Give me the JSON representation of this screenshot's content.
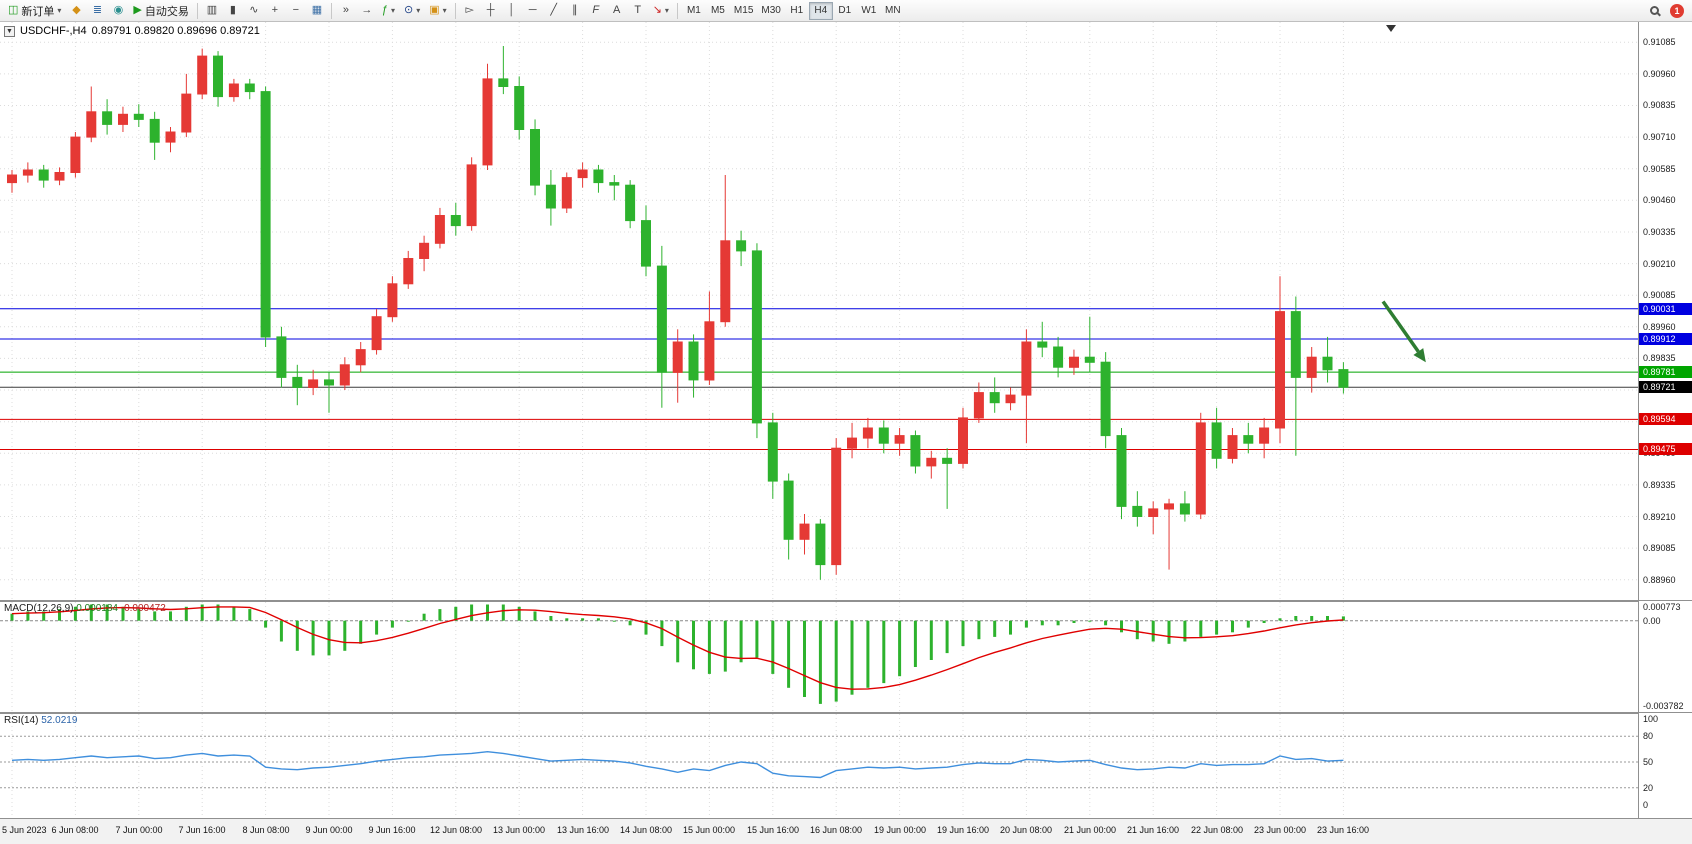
{
  "toolbar": {
    "new_order_label": "新订单",
    "autotrade_label": "自动交易",
    "timeframes": [
      "M1",
      "M5",
      "M15",
      "M30",
      "H1",
      "H4",
      "D1",
      "W1",
      "MN"
    ],
    "active_timeframe": "H4",
    "notification_badge": "1"
  },
  "icons": {
    "new_order": "◫",
    "terminal": "◆",
    "market_watch": "≣",
    "community": "◉",
    "autotrade_play": "▶",
    "bar_chart": "▥",
    "candlestick": "▮",
    "line_chart": "∿",
    "zoom_in": "+",
    "zoom_out": "−",
    "tile_windows": "▦",
    "auto_scroll": "»",
    "chart_shift": "→",
    "indicators": "ƒ",
    "periods": "⊙",
    "templates": "▣",
    "cursor": "▻",
    "crosshair": "┼",
    "vline": "│",
    "hline": "─",
    "trendline": "╱",
    "channel": "∥",
    "fibonacci": "F",
    "text": "A",
    "text_label": "T",
    "arrows": "↘",
    "dropdown": "▾",
    "collapse": "▼"
  },
  "chart_header": {
    "title": "USDCHF-,H4",
    "ohlc": "0.89791 0.89820 0.89696 0.89721"
  },
  "indicators": {
    "macd": {
      "label": "MACD(12,26,9)",
      "value_main": "0.000184",
      "value_signal": "-0.000472",
      "scale_top": "0.000773",
      "scale_zero": "0.00",
      "scale_bottom": "-0.003782"
    },
    "rsi": {
      "label": "RSI(14)",
      "value": "52.0219",
      "scale": [
        "100",
        "80",
        "50",
        "20",
        "0"
      ]
    }
  },
  "price_scale": {
    "labels": [
      "0.91085",
      "0.90960",
      "0.90835",
      "0.90710",
      "0.90585",
      "0.90460",
      "0.90335",
      "0.90210",
      "0.90085",
      "0.89960",
      "0.89835",
      "0.89710",
      "0.89585",
      "0.89460",
      "0.89335",
      "0.89210",
      "0.89085",
      "0.88960"
    ]
  },
  "price_lines": [
    {
      "price": 0.90031,
      "label": "0.90031",
      "color": "#0000e0",
      "name": "resistance-line-1"
    },
    {
      "price": 0.89912,
      "label": "0.89912",
      "color": "#0000e0",
      "name": "resistance-line-2"
    },
    {
      "price": 0.89781,
      "label": "0.89781",
      "color": "#00a500",
      "name": "pivot-line"
    },
    {
      "price": 0.89721,
      "label": "0.89721",
      "color": "#3c3c3c",
      "name": "current-price-line",
      "current": true
    },
    {
      "price": 0.89594,
      "label": "0.89594",
      "color": "#dd0000",
      "name": "support-line-1"
    },
    {
      "price": 0.89475,
      "label": "0.89475",
      "color": "#dd0000",
      "name": "support-line-2"
    }
  ],
  "time_axis": [
    "5 Jun 2023",
    "6 Jun 08:00",
    "7 Jun 00:00",
    "7 Jun 16:00",
    "8 Jun 08:00",
    "9 Jun 00:00",
    "9 Jun 16:00",
    "12 Jun 08:00",
    "13 Jun 00:00",
    "13 Jun 16:00",
    "14 Jun 08:00",
    "15 Jun 00:00",
    "15 Jun 16:00",
    "16 Jun 08:00",
    "19 Jun 00:00",
    "19 Jun 16:00",
    "20 Jun 08:00",
    "21 Jun 00:00",
    "21 Jun 16:00",
    "22 Jun 08:00",
    "23 Jun 00:00",
    "23 Jun 16:00"
  ],
  "annotations": {
    "arrow": {
      "from_idx": 86.5,
      "from_price": 0.9006,
      "to_idx": 89.2,
      "to_price": 0.8982,
      "color": "#2e7d32"
    }
  },
  "chart_data": {
    "type": "candlestick",
    "symbol": "USDCHF-",
    "timeframe": "H4",
    "price_range": [
      0.8888,
      0.91165
    ],
    "colors": {
      "up": "#e53935",
      "down": "#2db22d",
      "macd_hist": "#2db22d",
      "macd_signal": "#e00000",
      "rsi_line": "#3f8fdd",
      "grid": "#dcdcdc"
    },
    "candles": [
      [
        0.9053,
        0.9058,
        0.9049,
        0.9056
      ],
      [
        0.9056,
        0.9061,
        0.9053,
        0.9058
      ],
      [
        0.9058,
        0.906,
        0.9051,
        0.9054
      ],
      [
        0.9054,
        0.9059,
        0.9052,
        0.9057
      ],
      [
        0.9057,
        0.9073,
        0.9055,
        0.9071
      ],
      [
        0.9071,
        0.9091,
        0.9069,
        0.9081
      ],
      [
        0.9081,
        0.9086,
        0.9072,
        0.9076
      ],
      [
        0.9076,
        0.9083,
        0.9073,
        0.908
      ],
      [
        0.908,
        0.9084,
        0.9075,
        0.9078
      ],
      [
        0.9078,
        0.9081,
        0.9062,
        0.9069
      ],
      [
        0.9069,
        0.9075,
        0.9065,
        0.9073
      ],
      [
        0.9073,
        0.9096,
        0.9071,
        0.9088
      ],
      [
        0.9088,
        0.9106,
        0.9086,
        0.9103
      ],
      [
        0.9103,
        0.9105,
        0.9083,
        0.9087
      ],
      [
        0.9087,
        0.9094,
        0.9085,
        0.9092
      ],
      [
        0.9092,
        0.9094,
        0.9086,
        0.9089
      ],
      [
        0.9089,
        0.9091,
        0.8988,
        0.8992
      ],
      [
        0.8992,
        0.8996,
        0.8972,
        0.8976
      ],
      [
        0.8976,
        0.8981,
        0.8965,
        0.8972
      ],
      [
        0.8972,
        0.8979,
        0.8969,
        0.8975
      ],
      [
        0.8975,
        0.8978,
        0.8962,
        0.8973
      ],
      [
        0.8973,
        0.8984,
        0.8971,
        0.8981
      ],
      [
        0.8981,
        0.899,
        0.8978,
        0.8987
      ],
      [
        0.8987,
        0.9003,
        0.8985,
        0.9
      ],
      [
        0.9,
        0.9016,
        0.8998,
        0.9013
      ],
      [
        0.9013,
        0.9026,
        0.9011,
        0.9023
      ],
      [
        0.9023,
        0.9032,
        0.9018,
        0.9029
      ],
      [
        0.9029,
        0.9043,
        0.9027,
        0.904
      ],
      [
        0.904,
        0.9045,
        0.9032,
        0.9036
      ],
      [
        0.9036,
        0.9063,
        0.9034,
        0.906
      ],
      [
        0.906,
        0.91,
        0.9058,
        0.9094
      ],
      [
        0.9094,
        0.9107,
        0.9088,
        0.9091
      ],
      [
        0.9091,
        0.9095,
        0.907,
        0.9074
      ],
      [
        0.9074,
        0.9078,
        0.9048,
        0.9052
      ],
      [
        0.9052,
        0.9058,
        0.9036,
        0.9043
      ],
      [
        0.9043,
        0.9057,
        0.9041,
        0.9055
      ],
      [
        0.9055,
        0.9061,
        0.9051,
        0.9058
      ],
      [
        0.9058,
        0.906,
        0.9049,
        0.9053
      ],
      [
        0.9053,
        0.9056,
        0.9046,
        0.9052
      ],
      [
        0.9052,
        0.9054,
        0.9035,
        0.9038
      ],
      [
        0.9038,
        0.9044,
        0.9016,
        0.902
      ],
      [
        0.902,
        0.9028,
        0.8964,
        0.8978
      ],
      [
        0.8978,
        0.8995,
        0.8966,
        0.899
      ],
      [
        0.899,
        0.8993,
        0.8968,
        0.8975
      ],
      [
        0.8975,
        0.901,
        0.8973,
        0.8998
      ],
      [
        0.8998,
        0.9056,
        0.8996,
        0.903
      ],
      [
        0.903,
        0.9034,
        0.902,
        0.9026
      ],
      [
        0.9026,
        0.9029,
        0.8952,
        0.8958
      ],
      [
        0.8958,
        0.8962,
        0.8928,
        0.8935
      ],
      [
        0.8935,
        0.8938,
        0.8904,
        0.8912
      ],
      [
        0.8912,
        0.8922,
        0.8906,
        0.8918
      ],
      [
        0.8918,
        0.892,
        0.8896,
        0.8902
      ],
      [
        0.8902,
        0.8952,
        0.8898,
        0.8948
      ],
      [
        0.8948,
        0.8958,
        0.8944,
        0.8952
      ],
      [
        0.8952,
        0.896,
        0.8948,
        0.8956
      ],
      [
        0.8956,
        0.8959,
        0.8946,
        0.895
      ],
      [
        0.895,
        0.8956,
        0.8945,
        0.8953
      ],
      [
        0.8953,
        0.8955,
        0.8938,
        0.8941
      ],
      [
        0.8941,
        0.8947,
        0.8936,
        0.8944
      ],
      [
        0.8944,
        0.8948,
        0.8924,
        0.8942
      ],
      [
        0.8942,
        0.8964,
        0.894,
        0.896
      ],
      [
        0.896,
        0.8974,
        0.8958,
        0.897
      ],
      [
        0.897,
        0.8976,
        0.8962,
        0.8966
      ],
      [
        0.8966,
        0.8972,
        0.8963,
        0.8969
      ],
      [
        0.8969,
        0.8995,
        0.895,
        0.899
      ],
      [
        0.899,
        0.8998,
        0.8984,
        0.8988
      ],
      [
        0.8988,
        0.8992,
        0.8976,
        0.898
      ],
      [
        0.898,
        0.8987,
        0.8977,
        0.8984
      ],
      [
        0.8984,
        0.9,
        0.8978,
        0.8982
      ],
      [
        0.8982,
        0.8986,
        0.8948,
        0.8953
      ],
      [
        0.8953,
        0.8956,
        0.892,
        0.8925
      ],
      [
        0.8925,
        0.8931,
        0.8917,
        0.8921
      ],
      [
        0.8921,
        0.8927,
        0.8914,
        0.8924
      ],
      [
        0.8924,
        0.8928,
        0.89,
        0.8926
      ],
      [
        0.8926,
        0.8931,
        0.8919,
        0.8922
      ],
      [
        0.8922,
        0.8962,
        0.892,
        0.8958
      ],
      [
        0.8958,
        0.8964,
        0.894,
        0.8944
      ],
      [
        0.8944,
        0.8956,
        0.8942,
        0.8953
      ],
      [
        0.8953,
        0.8958,
        0.8946,
        0.895
      ],
      [
        0.895,
        0.896,
        0.8944,
        0.8956
      ],
      [
        0.8956,
        0.9016,
        0.895,
        0.9002
      ],
      [
        0.9002,
        0.9008,
        0.8945,
        0.8976
      ],
      [
        0.8976,
        0.8988,
        0.897,
        0.8984
      ],
      [
        0.8984,
        0.8992,
        0.8974,
        0.8979
      ],
      [
        0.89791,
        0.8982,
        0.89696,
        0.89721
      ]
    ],
    "macd_hist": [
      0.0003,
      0.0004,
      0.0004,
      0.0005,
      0.0006,
      0.0007,
      0.0007,
      0.0006,
      0.0005,
      0.0004,
      0.0004,
      0.0006,
      0.0007,
      0.0007,
      0.0006,
      0.0005,
      -0.0003,
      -0.0009,
      -0.0013,
      -0.0015,
      -0.0015,
      -0.0013,
      -0.001,
      -0.0006,
      -0.0003,
      0.0,
      0.0003,
      0.0005,
      0.0006,
      0.0007,
      0.0007,
      0.0007,
      0.0006,
      0.0004,
      0.0002,
      0.0001,
      0.0001,
      0.0001,
      0.0,
      -0.0002,
      -0.0006,
      -0.0011,
      -0.0018,
      -0.0021,
      -0.0023,
      -0.0022,
      -0.0018,
      -0.0016,
      -0.0023,
      -0.0029,
      -0.0033,
      -0.0036,
      -0.0035,
      -0.0032,
      -0.0029,
      -0.0027,
      -0.0024,
      -0.002,
      -0.0017,
      -0.0014,
      -0.0011,
      -0.0008,
      -0.0007,
      -0.0006,
      -0.0003,
      -0.0002,
      -0.0002,
      -0.0001,
      0.0,
      -0.0002,
      -0.0005,
      -0.0008,
      -0.0009,
      -0.001,
      -0.0009,
      -0.0007,
      -0.0006,
      -0.0005,
      -0.0003,
      -0.0001,
      0.0001,
      0.0002,
      0.0002,
      0.0002,
      0.000184
    ],
    "rsi": [
      52,
      53,
      52,
      53,
      55,
      57,
      55,
      56,
      57,
      54,
      55,
      58,
      60,
      57,
      58,
      57,
      44,
      42,
      41,
      43,
      44,
      46,
      48,
      51,
      53,
      55,
      56,
      58,
      59,
      60,
      62,
      60,
      57,
      54,
      51,
      52,
      53,
      52,
      51,
      49,
      45,
      42,
      38,
      42,
      40,
      46,
      50,
      48,
      37,
      34,
      33,
      32,
      40,
      42,
      44,
      43,
      44,
      42,
      43,
      44,
      47,
      49,
      48,
      48,
      53,
      52,
      50,
      51,
      52,
      47,
      43,
      41,
      42,
      44,
      43,
      48,
      46,
      47,
      47,
      48,
      57,
      53,
      54,
      51,
      52.0219
    ],
    "rsi_levels": [
      80,
      50,
      20
    ]
  }
}
